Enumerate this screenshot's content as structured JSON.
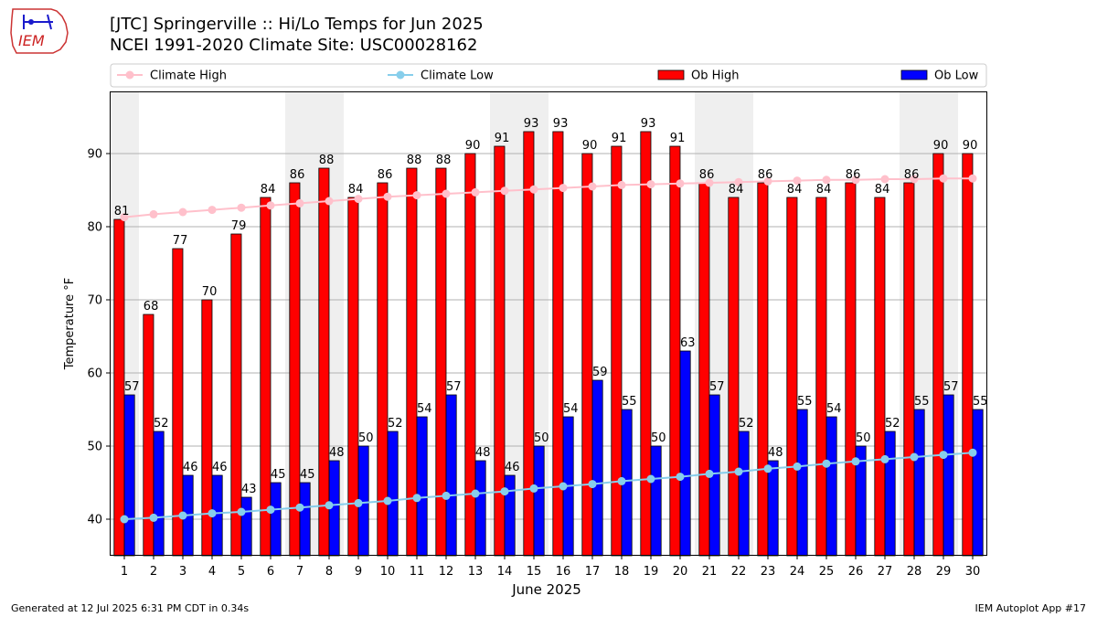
{
  "title": {
    "line1": "[JTC] Springerville :: Hi/Lo Temps for Jun 2025",
    "line2": "NCEI 1991-2020 Climate Site: USC00028162"
  },
  "logo": {
    "text": "IEM"
  },
  "footer": {
    "left": "Generated at 12 Jul 2025 6:31 PM CDT in 0.34s",
    "right": "IEM Autoplot App #17"
  },
  "chart_data": {
    "type": "bar",
    "xlabel": "June 2025",
    "ylabel": "Temperature °F",
    "ylim": [
      35,
      98.5
    ],
    "yticks": [
      40,
      50,
      60,
      70,
      80,
      90
    ],
    "categories": [
      "1",
      "2",
      "3",
      "4",
      "5",
      "6",
      "7",
      "8",
      "9",
      "10",
      "11",
      "12",
      "13",
      "14",
      "15",
      "16",
      "17",
      "18",
      "19",
      "20",
      "21",
      "22",
      "23",
      "24",
      "25",
      "26",
      "27",
      "28",
      "29",
      "30"
    ],
    "weekend_days": [
      1,
      7,
      8,
      14,
      15,
      21,
      22,
      28,
      29
    ],
    "grid": "horizontal",
    "legend_position": "top",
    "series": [
      {
        "name": "Ob High",
        "kind": "bar",
        "color": "#ff0000",
        "values": [
          81,
          68,
          77,
          70,
          79,
          84,
          86,
          88,
          84,
          86,
          88,
          88,
          90,
          91,
          93,
          93,
          90,
          91,
          93,
          91,
          86,
          84,
          86,
          84,
          84,
          86,
          84,
          86,
          90,
          90
        ]
      },
      {
        "name": "Ob Low",
        "kind": "bar",
        "color": "#0000ff",
        "values": [
          57,
          52,
          46,
          46,
          43,
          45,
          45,
          48,
          50,
          52,
          54,
          57,
          48,
          46,
          50,
          54,
          59,
          55,
          50,
          63,
          57,
          52,
          48,
          55,
          54,
          50,
          52,
          55,
          57,
          55
        ]
      },
      {
        "name": "Climate High",
        "kind": "line",
        "color": "#ffc0cb",
        "values": [
          81.3,
          81.7,
          82.0,
          82.3,
          82.6,
          82.9,
          83.2,
          83.5,
          83.8,
          84.1,
          84.3,
          84.5,
          84.7,
          84.9,
          85.1,
          85.3,
          85.5,
          85.7,
          85.8,
          85.9,
          86.0,
          86.1,
          86.2,
          86.3,
          86.4,
          86.4,
          86.5,
          86.5,
          86.6,
          86.6
        ]
      },
      {
        "name": "Climate Low",
        "kind": "line",
        "color": "#87ceeb",
        "values": [
          40.0,
          40.2,
          40.5,
          40.8,
          41.0,
          41.3,
          41.6,
          41.9,
          42.2,
          42.5,
          42.9,
          43.2,
          43.5,
          43.8,
          44.2,
          44.5,
          44.8,
          45.2,
          45.5,
          45.8,
          46.2,
          46.5,
          46.9,
          47.2,
          47.6,
          47.9,
          48.2,
          48.5,
          48.8,
          49.1
        ]
      }
    ]
  }
}
